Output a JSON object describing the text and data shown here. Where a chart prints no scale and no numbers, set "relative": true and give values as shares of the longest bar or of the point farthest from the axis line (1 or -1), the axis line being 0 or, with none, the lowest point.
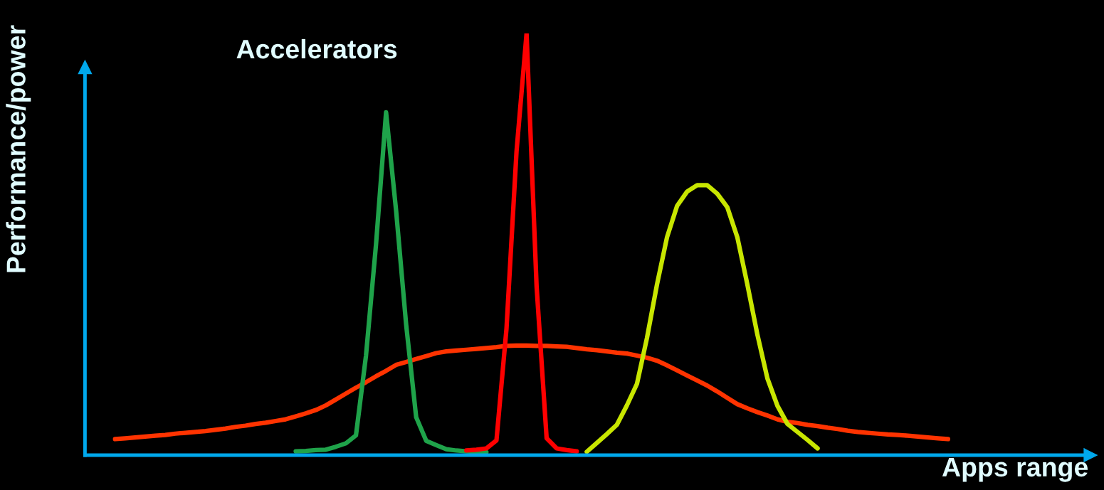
{
  "chart_data": {
    "type": "line",
    "relative": true,
    "xlabel": "Apps range",
    "ylabel": "Performance/power",
    "annotations": [
      "Accelerators"
    ],
    "legend": false,
    "marker": "none",
    "line_style": "solid",
    "categories": [
      null,
      null,
      null,
      null,
      null,
      null,
      null,
      null,
      null,
      null,
      null,
      null,
      null,
      null,
      null,
      null,
      null,
      null,
      null,
      null,
      null,
      null,
      null,
      null,
      null,
      null,
      null,
      null,
      null,
      null,
      null,
      null,
      null,
      null,
      null,
      null,
      null,
      null,
      null,
      null,
      null,
      null,
      null,
      null,
      null,
      null,
      null,
      null,
      null,
      null,
      null,
      null,
      null,
      null,
      null,
      null,
      null,
      null,
      null,
      null,
      null,
      null,
      null,
      null,
      null,
      null,
      null,
      null,
      null,
      null,
      null,
      null,
      null,
      null,
      null,
      null,
      null,
      null,
      null,
      null,
      null,
      null,
      null,
      null,
      null,
      null
    ],
    "series": [
      {
        "color": "#ff3300",
        "values": [
          null,
          0.038,
          0.04,
          0.042,
          0.044,
          0.046,
          0.048,
          0.051,
          0.053,
          0.055,
          0.057,
          0.06,
          0.063,
          0.067,
          0.07,
          0.074,
          0.077,
          0.081,
          0.085,
          0.092,
          0.099,
          0.107,
          0.118,
          0.132,
          0.146,
          0.16,
          0.173,
          0.187,
          0.2,
          0.214,
          0.221,
          0.228,
          0.235,
          0.242,
          0.246,
          0.248,
          0.25,
          0.252,
          0.254,
          0.256,
          0.259,
          0.26,
          0.26,
          0.259,
          0.259,
          0.258,
          0.257,
          0.254,
          0.251,
          0.249,
          0.246,
          0.243,
          0.241,
          0.236,
          0.231,
          0.224,
          0.213,
          0.201,
          0.189,
          0.177,
          0.165,
          0.151,
          0.136,
          0.121,
          0.111,
          0.102,
          0.094,
          0.085,
          0.079,
          0.076,
          0.072,
          0.069,
          0.065,
          0.062,
          0.058,
          0.055,
          0.053,
          0.051,
          0.049,
          0.048,
          0.046,
          0.044,
          0.042,
          0.04,
          0.038,
          null
        ]
      },
      {
        "color": "#1fa34a",
        "values": [
          null,
          null,
          null,
          null,
          null,
          null,
          null,
          null,
          null,
          null,
          null,
          null,
          null,
          null,
          null,
          null,
          null,
          null,
          null,
          0.009,
          0.01,
          0.012,
          0.013,
          0.02,
          0.028,
          0.047,
          0.236,
          0.5,
          0.813,
          0.58,
          0.31,
          0.09,
          0.034,
          0.024,
          0.014,
          0.011,
          0.009,
          0.008,
          0.007,
          null,
          null,
          null,
          null,
          null,
          null,
          null,
          null,
          null,
          null,
          null,
          null,
          null,
          null,
          null,
          null,
          null,
          null,
          null,
          null,
          null,
          null,
          null,
          null,
          null,
          null,
          null,
          null,
          null,
          null,
          null,
          null,
          null,
          null,
          null,
          null,
          null,
          null,
          null,
          null,
          null,
          null,
          null,
          null,
          null,
          null,
          null
        ]
      },
      {
        "color": "#ff0000",
        "values": [
          null,
          null,
          null,
          null,
          null,
          null,
          null,
          null,
          null,
          null,
          null,
          null,
          null,
          null,
          null,
          null,
          null,
          null,
          null,
          null,
          null,
          null,
          null,
          null,
          null,
          null,
          null,
          null,
          null,
          null,
          null,
          null,
          null,
          null,
          null,
          null,
          0.011,
          0.013,
          0.016,
          0.035,
          0.3,
          0.72,
          1,
          0.4,
          0.04,
          0.016,
          0.012,
          0.009,
          null,
          null,
          null,
          null,
          null,
          null,
          null,
          null,
          null,
          null,
          null,
          null,
          null,
          null,
          null,
          null,
          null,
          null,
          null,
          null,
          null,
          null,
          null,
          null,
          null,
          null,
          null,
          null,
          null,
          null,
          null,
          null,
          null,
          null,
          null,
          null,
          null,
          null
        ]
      },
      {
        "color": "#c8e600",
        "values": [
          null,
          null,
          null,
          null,
          null,
          null,
          null,
          null,
          null,
          null,
          null,
          null,
          null,
          null,
          null,
          null,
          null,
          null,
          null,
          null,
          null,
          null,
          null,
          null,
          null,
          null,
          null,
          null,
          null,
          null,
          null,
          null,
          null,
          null,
          null,
          null,
          null,
          null,
          null,
          null,
          null,
          null,
          null,
          null,
          null,
          null,
          null,
          null,
          0.008,
          0.029,
          0.05,
          0.072,
          0.118,
          0.169,
          0.278,
          0.405,
          0.517,
          0.591,
          0.625,
          0.64,
          0.64,
          0.62,
          0.588,
          0.517,
          0.405,
          0.286,
          0.182,
          0.117,
          0.074,
          0.055,
          0.036,
          0.016,
          null,
          null,
          null,
          null,
          null,
          null,
          null,
          null,
          null,
          null,
          null,
          null,
          null,
          null
        ]
      }
    ]
  }
}
